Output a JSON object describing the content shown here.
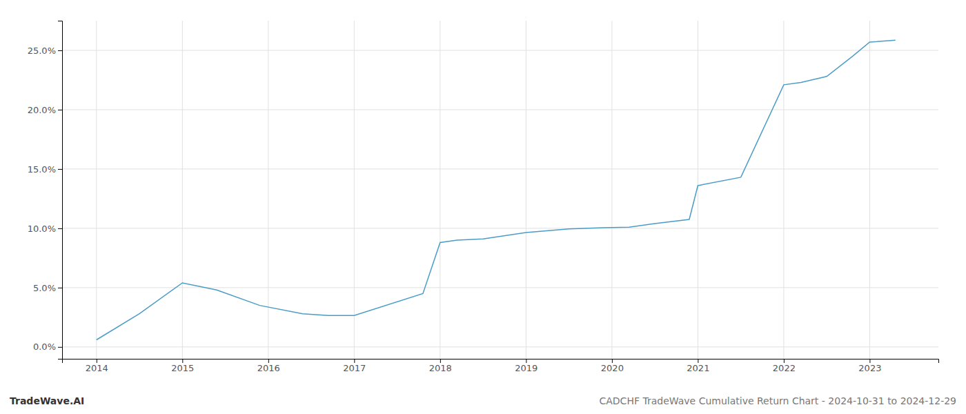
{
  "chart_data": {
    "type": "line",
    "title": "CADCHF TradeWave Cumulative Return Chart - 2024-10-31 to 2024-12-29",
    "annotations": [
      "TradeWave.AI"
    ],
    "x": [
      2014.0,
      2014.5,
      2015.0,
      2015.4,
      2015.9,
      2016.4,
      2016.7,
      2017.0,
      2017.8,
      2018.0,
      2018.2,
      2018.5,
      2019.0,
      2019.5,
      2019.9,
      2020.2,
      2020.5,
      2020.9,
      2021.0,
      2021.5,
      2022.0,
      2022.2,
      2022.5,
      2022.8,
      2023.0,
      2023.3
    ],
    "values": [
      0.6,
      2.8,
      5.4,
      4.8,
      3.5,
      2.8,
      2.65,
      2.65,
      4.5,
      8.8,
      9.0,
      9.1,
      9.65,
      9.95,
      10.05,
      10.1,
      10.4,
      10.75,
      13.6,
      14.3,
      22.1,
      22.3,
      22.8,
      24.5,
      25.7,
      25.85
    ],
    "color": "#4a9cc7",
    "xlim": [
      2013.6,
      2023.8
    ],
    "ylim": [
      -1.0,
      27.5
    ],
    "xticks": [
      2014,
      2015,
      2016,
      2017,
      2018,
      2019,
      2020,
      2021,
      2022,
      2023
    ],
    "yticks": [
      {
        "value": 0.0,
        "label": "0.0%"
      },
      {
        "value": 5.0,
        "label": "5.0%"
      },
      {
        "value": 10.0,
        "label": "10.0%"
      },
      {
        "value": 15.0,
        "label": "15.0%"
      },
      {
        "value": 20.0,
        "label": "20.0%"
      },
      {
        "value": 25.0,
        "label": "25.0%"
      }
    ],
    "grid": true
  }
}
